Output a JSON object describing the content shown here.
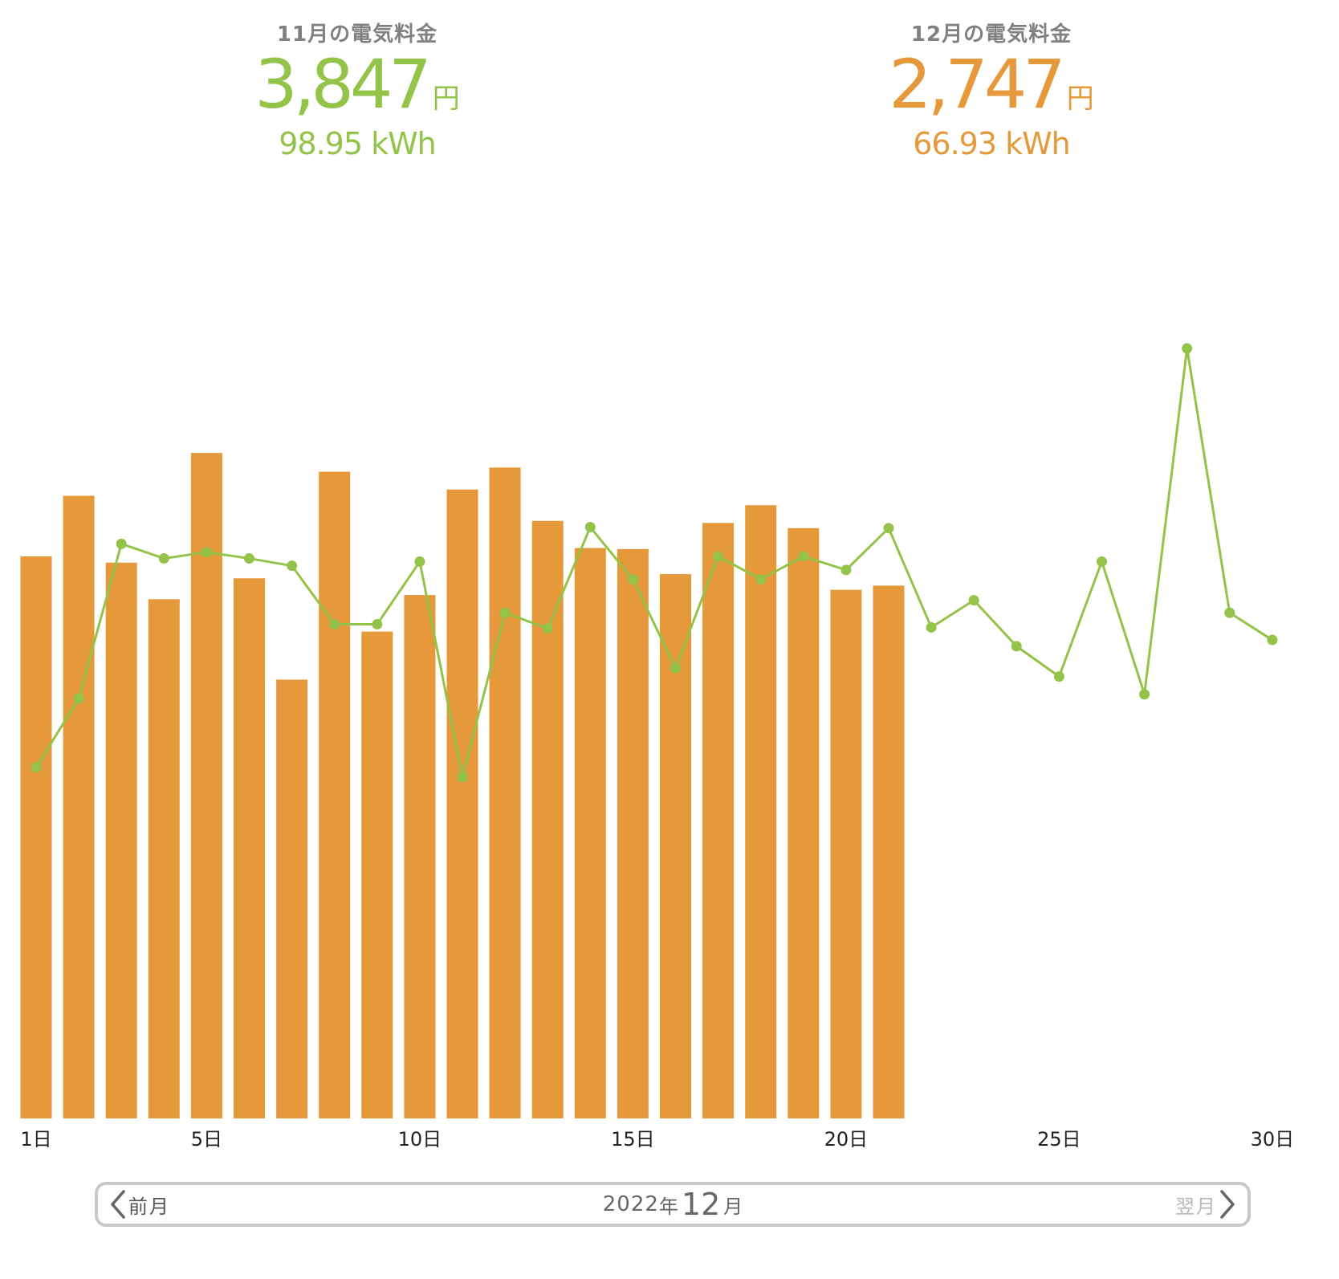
{
  "summary": {
    "previous": {
      "label": "11月の電気料金",
      "amount": "3,847",
      "unit": "円",
      "kwh": "98.95 kWh",
      "color": "#93c349"
    },
    "current": {
      "label": "12月の電気料金",
      "amount": "2,747",
      "unit": "円",
      "kwh": "66.93 kWh",
      "color": "#e6993a"
    }
  },
  "nav": {
    "prev_label": "前月",
    "next_label": "翌月",
    "year": "2022",
    "year_suffix": "年",
    "month": "12",
    "month_suffix": "月"
  },
  "chart_data": {
    "type": "bar",
    "x_ticks": [
      {
        "day": 1,
        "label": "1日"
      },
      {
        "day": 5,
        "label": "5日"
      },
      {
        "day": 10,
        "label": "10日"
      },
      {
        "day": 15,
        "label": "15日"
      },
      {
        "day": 20,
        "label": "20日"
      },
      {
        "day": 25,
        "label": "25日"
      },
      {
        "day": 30,
        "label": "30日"
      }
    ],
    "ylim": [
      0,
      8.4
    ],
    "grid": false,
    "series": [
      {
        "type": "bar",
        "color": "#e6993a",
        "days": [
          1,
          2,
          3,
          4,
          5,
          6,
          7,
          8,
          9,
          10,
          11,
          12,
          13,
          14,
          15,
          16,
          17,
          18,
          19,
          20,
          21
        ],
        "values": [
          5.38,
          5.96,
          5.32,
          4.97,
          6.37,
          5.17,
          4.2,
          6.19,
          4.66,
          5.01,
          6.02,
          6.23,
          5.72,
          5.46,
          5.45,
          5.21,
          5.7,
          5.87,
          5.65,
          5.06,
          5.1
        ]
      },
      {
        "type": "line",
        "color": "#93c349",
        "days": [
          1,
          2,
          3,
          4,
          5,
          6,
          7,
          8,
          9,
          10,
          11,
          12,
          13,
          14,
          15,
          16,
          17,
          18,
          19,
          20,
          21,
          22,
          23,
          24,
          25,
          26,
          27,
          28,
          29,
          30
        ],
        "values": [
          3.36,
          4.02,
          5.5,
          5.36,
          5.42,
          5.36,
          5.29,
          4.73,
          4.73,
          5.33,
          3.27,
          4.84,
          4.69,
          5.66,
          5.16,
          4.31,
          5.38,
          5.16,
          5.38,
          5.25,
          5.65,
          4.7,
          4.96,
          4.52,
          4.23,
          5.33,
          4.06,
          7.37,
          4.84,
          4.58
        ]
      }
    ]
  }
}
